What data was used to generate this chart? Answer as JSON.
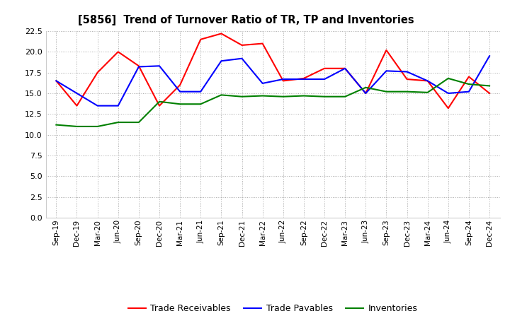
{
  "title": "[5856]  Trend of Turnover Ratio of TR, TP and Inventories",
  "x_labels": [
    "Sep-19",
    "Dec-19",
    "Mar-20",
    "Jun-20",
    "Sep-20",
    "Dec-20",
    "Mar-21",
    "Jun-21",
    "Sep-21",
    "Dec-21",
    "Mar-22",
    "Jun-22",
    "Sep-22",
    "Dec-22",
    "Mar-23",
    "Jun-23",
    "Sep-23",
    "Dec-23",
    "Mar-24",
    "Jun-24",
    "Sep-24",
    "Dec-24"
  ],
  "trade_receivables": [
    16.5,
    13.5,
    17.5,
    20.0,
    18.3,
    13.5,
    16.0,
    21.5,
    22.2,
    20.8,
    21.0,
    16.5,
    16.8,
    18.0,
    18.0,
    15.0,
    20.2,
    16.7,
    16.5,
    13.2,
    17.0,
    15.0
  ],
  "trade_payables": [
    16.5,
    15.0,
    13.5,
    13.5,
    18.2,
    18.3,
    15.2,
    15.2,
    18.9,
    19.2,
    16.2,
    16.7,
    16.7,
    16.7,
    18.0,
    15.0,
    17.7,
    17.6,
    16.5,
    15.0,
    15.2,
    19.5
  ],
  "inventories": [
    11.2,
    11.0,
    11.0,
    11.5,
    11.5,
    14.0,
    13.7,
    13.7,
    14.8,
    14.6,
    14.7,
    14.6,
    14.7,
    14.6,
    14.6,
    15.7,
    15.2,
    15.2,
    15.1,
    16.8,
    16.1,
    15.9
  ],
  "tr_color": "#ff0000",
  "tp_color": "#0000ff",
  "inv_color": "#008000",
  "background_color": "#ffffff",
  "ylim": [
    0,
    22.5
  ],
  "yticks": [
    0.0,
    2.5,
    5.0,
    7.5,
    10.0,
    12.5,
    15.0,
    17.5,
    20.0,
    22.5
  ],
  "legend_labels": [
    "Trade Receivables",
    "Trade Payables",
    "Inventories"
  ]
}
